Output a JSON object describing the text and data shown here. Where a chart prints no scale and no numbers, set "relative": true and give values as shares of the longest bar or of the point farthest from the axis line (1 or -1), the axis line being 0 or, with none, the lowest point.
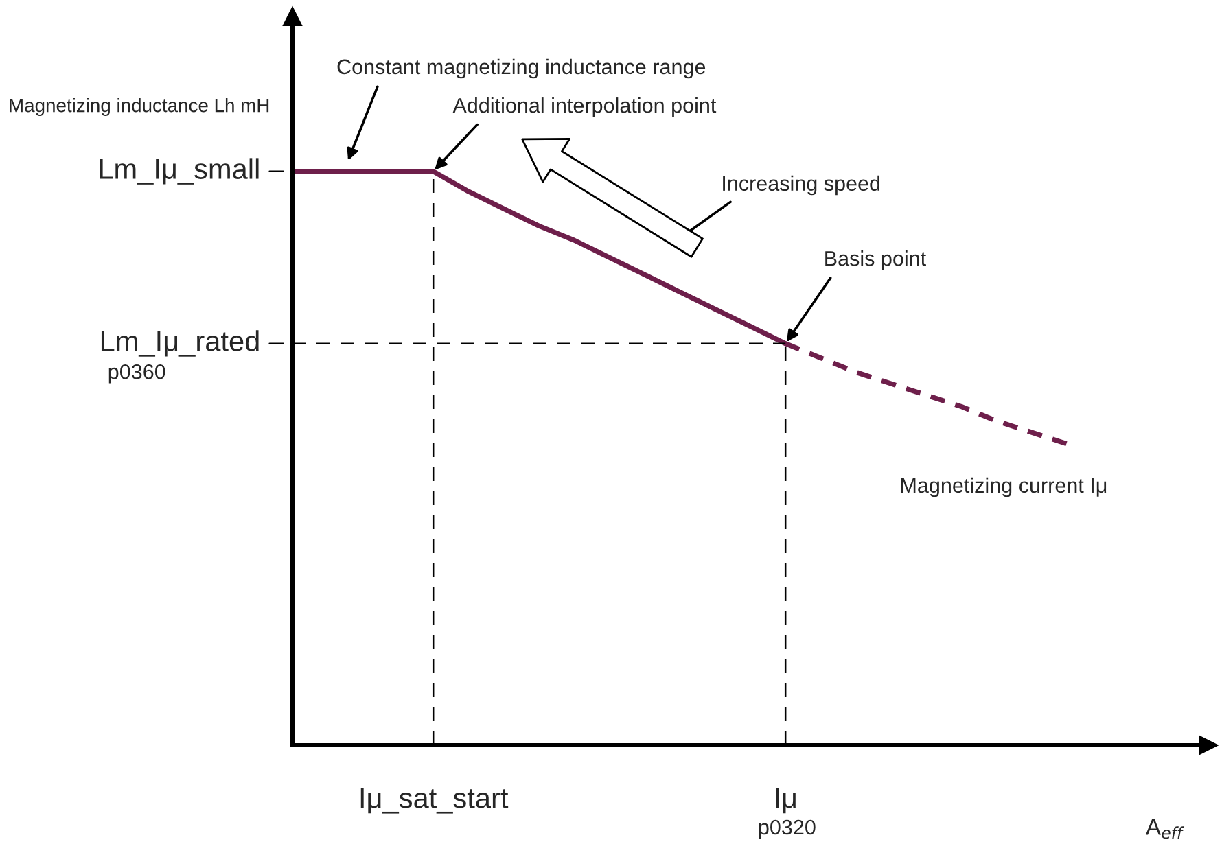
{
  "chart_data": {
    "type": "line",
    "relative": true,
    "legend": false,
    "xlabel": "A$_{eff}$",
    "ylabel": "Magnetizing inductance Lh mH",
    "categories": [
      null,
      null,
      null,
      null,
      "Iμ_sat_start",
      null,
      null,
      null,
      null,
      null,
      null,
      null,
      null,
      null,
      "Iμ",
      null,
      null,
      null,
      null,
      null,
      null,
      null,
      null
    ],
    "series": [
      {
        "color": "#6e1f4b",
        "line_style": "solid",
        "values": [
          1.0,
          1.0,
          1.0,
          1.0,
          1.0,
          0.965,
          0.935,
          0.905,
          0.88,
          0.85,
          0.82,
          0.79,
          0.76,
          0.73,
          0.7,
          null,
          null,
          null,
          null,
          null,
          null,
          null,
          null
        ]
      },
      {
        "color": "#6e1f4b",
        "line_style": "dashed",
        "values": [
          null,
          null,
          null,
          null,
          null,
          null,
          null,
          null,
          null,
          null,
          null,
          null,
          null,
          null,
          0.7,
          0.675,
          0.65,
          0.63,
          0.61,
          0.59,
          0.565,
          0.545,
          0.525
        ]
      }
    ],
    "ref_lines": [
      {
        "axis": "y",
        "value": 1.0,
        "label": "Lm_Iμ_small"
      },
      {
        "axis": "y",
        "value": 0.7,
        "label": "Lm_Iμ_rated"
      },
      {
        "axis": "x",
        "value": "Iμ_sat_start"
      },
      {
        "axis": "x",
        "value": "Iμ"
      }
    ],
    "annotations": [
      "Constant magnetizing inductance range",
      {
        "text": "Additional interpolation point",
        "x": "Iμ_sat_start",
        "y": 1.0
      },
      "Increasing speed",
      {
        "text": "Basis point",
        "x": "Iμ",
        "y": 0.7
      },
      "Magnetizing current Iμ",
      "p0360",
      "p0320"
    ]
  }
}
